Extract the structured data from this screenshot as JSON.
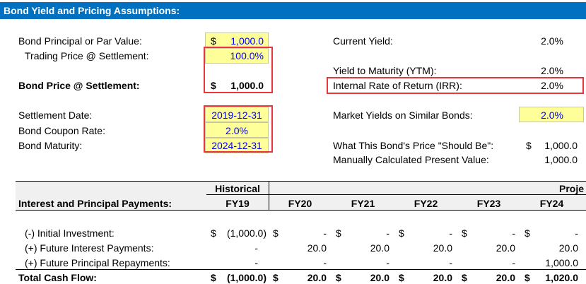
{
  "title": "Bond Yield and Pricing Assumptions:",
  "left": {
    "principal_label": "Bond Principal or Par Value:",
    "principal_currency": "$",
    "principal_value": "1,000.0",
    "trading_label": "Trading Price @ Settlement:",
    "trading_value": "100.0%",
    "price_label": "Bond Price @ Settlement:",
    "price_currency": "$",
    "price_value": "1,000.0",
    "settlement_label": "Settlement Date:",
    "settlement_value": "2019-12-31",
    "coupon_label": "Bond Coupon Rate:",
    "coupon_value": "2.0%",
    "maturity_label": "Bond Maturity:",
    "maturity_value": "2024-12-31"
  },
  "right": {
    "current_yield_label": "Current Yield:",
    "current_yield_value": "2.0%",
    "ytm_label": "Yield to Maturity (YTM):",
    "ytm_value": "2.0%",
    "irr_label": "Internal Rate of Return (IRR):",
    "irr_value": "2.0%",
    "market_label": "Market Yields on Similar Bonds:",
    "market_value": "2.0%",
    "should_be_label": "What This Bond's Price \"Should Be\":",
    "should_be_currency": "$",
    "should_be_value": "1,000.0",
    "manual_pv_label": "Manually Calculated Present Value:",
    "manual_pv_value": "1,000.0"
  },
  "table": {
    "historical_label": "Historical",
    "projected_label": "Proje",
    "section_label": "Interest and Principal Payments:",
    "years": [
      "FY19",
      "FY20",
      "FY21",
      "FY22",
      "FY23",
      "FY24"
    ],
    "rows": [
      {
        "label": "(-) Initial Investment:",
        "cells": [
          {
            "cur": "$",
            "val": "(1,000.0)"
          },
          {
            "cur": "$",
            "val": "-"
          },
          {
            "cur": "$",
            "val": "-"
          },
          {
            "cur": "$",
            "val": "-"
          },
          {
            "cur": "$",
            "val": "-"
          },
          {
            "cur": "$",
            "val": "-"
          }
        ]
      },
      {
        "label": "(+) Future Interest Payments:",
        "cells": [
          {
            "cur": "",
            "val": "-"
          },
          {
            "cur": "",
            "val": "20.0"
          },
          {
            "cur": "",
            "val": "20.0"
          },
          {
            "cur": "",
            "val": "20.0"
          },
          {
            "cur": "",
            "val": "20.0"
          },
          {
            "cur": "",
            "val": "20.0"
          }
        ]
      },
      {
        "label": "(+) Future Principal Repayments:",
        "cells": [
          {
            "cur": "",
            "val": "-"
          },
          {
            "cur": "",
            "val": "-"
          },
          {
            "cur": "",
            "val": "-"
          },
          {
            "cur": "",
            "val": "-"
          },
          {
            "cur": "",
            "val": "-"
          },
          {
            "cur": "",
            "val": "1,000.0"
          }
        ]
      },
      {
        "label": "Total Cash Flow:",
        "cells": [
          {
            "cur": "$",
            "val": "(1,000.0)"
          },
          {
            "cur": "$",
            "val": "20.0"
          },
          {
            "cur": "$",
            "val": "20.0"
          },
          {
            "cur": "$",
            "val": "20.0"
          },
          {
            "cur": "$",
            "val": "20.0"
          },
          {
            "cur": "$",
            "val": "1,020.0"
          }
        ]
      }
    ]
  },
  "colors": {
    "title_bar": "#0070c0",
    "input_fill": "#ffff99",
    "input_text": "#0000ff",
    "highlight_border": "#e8363d"
  }
}
